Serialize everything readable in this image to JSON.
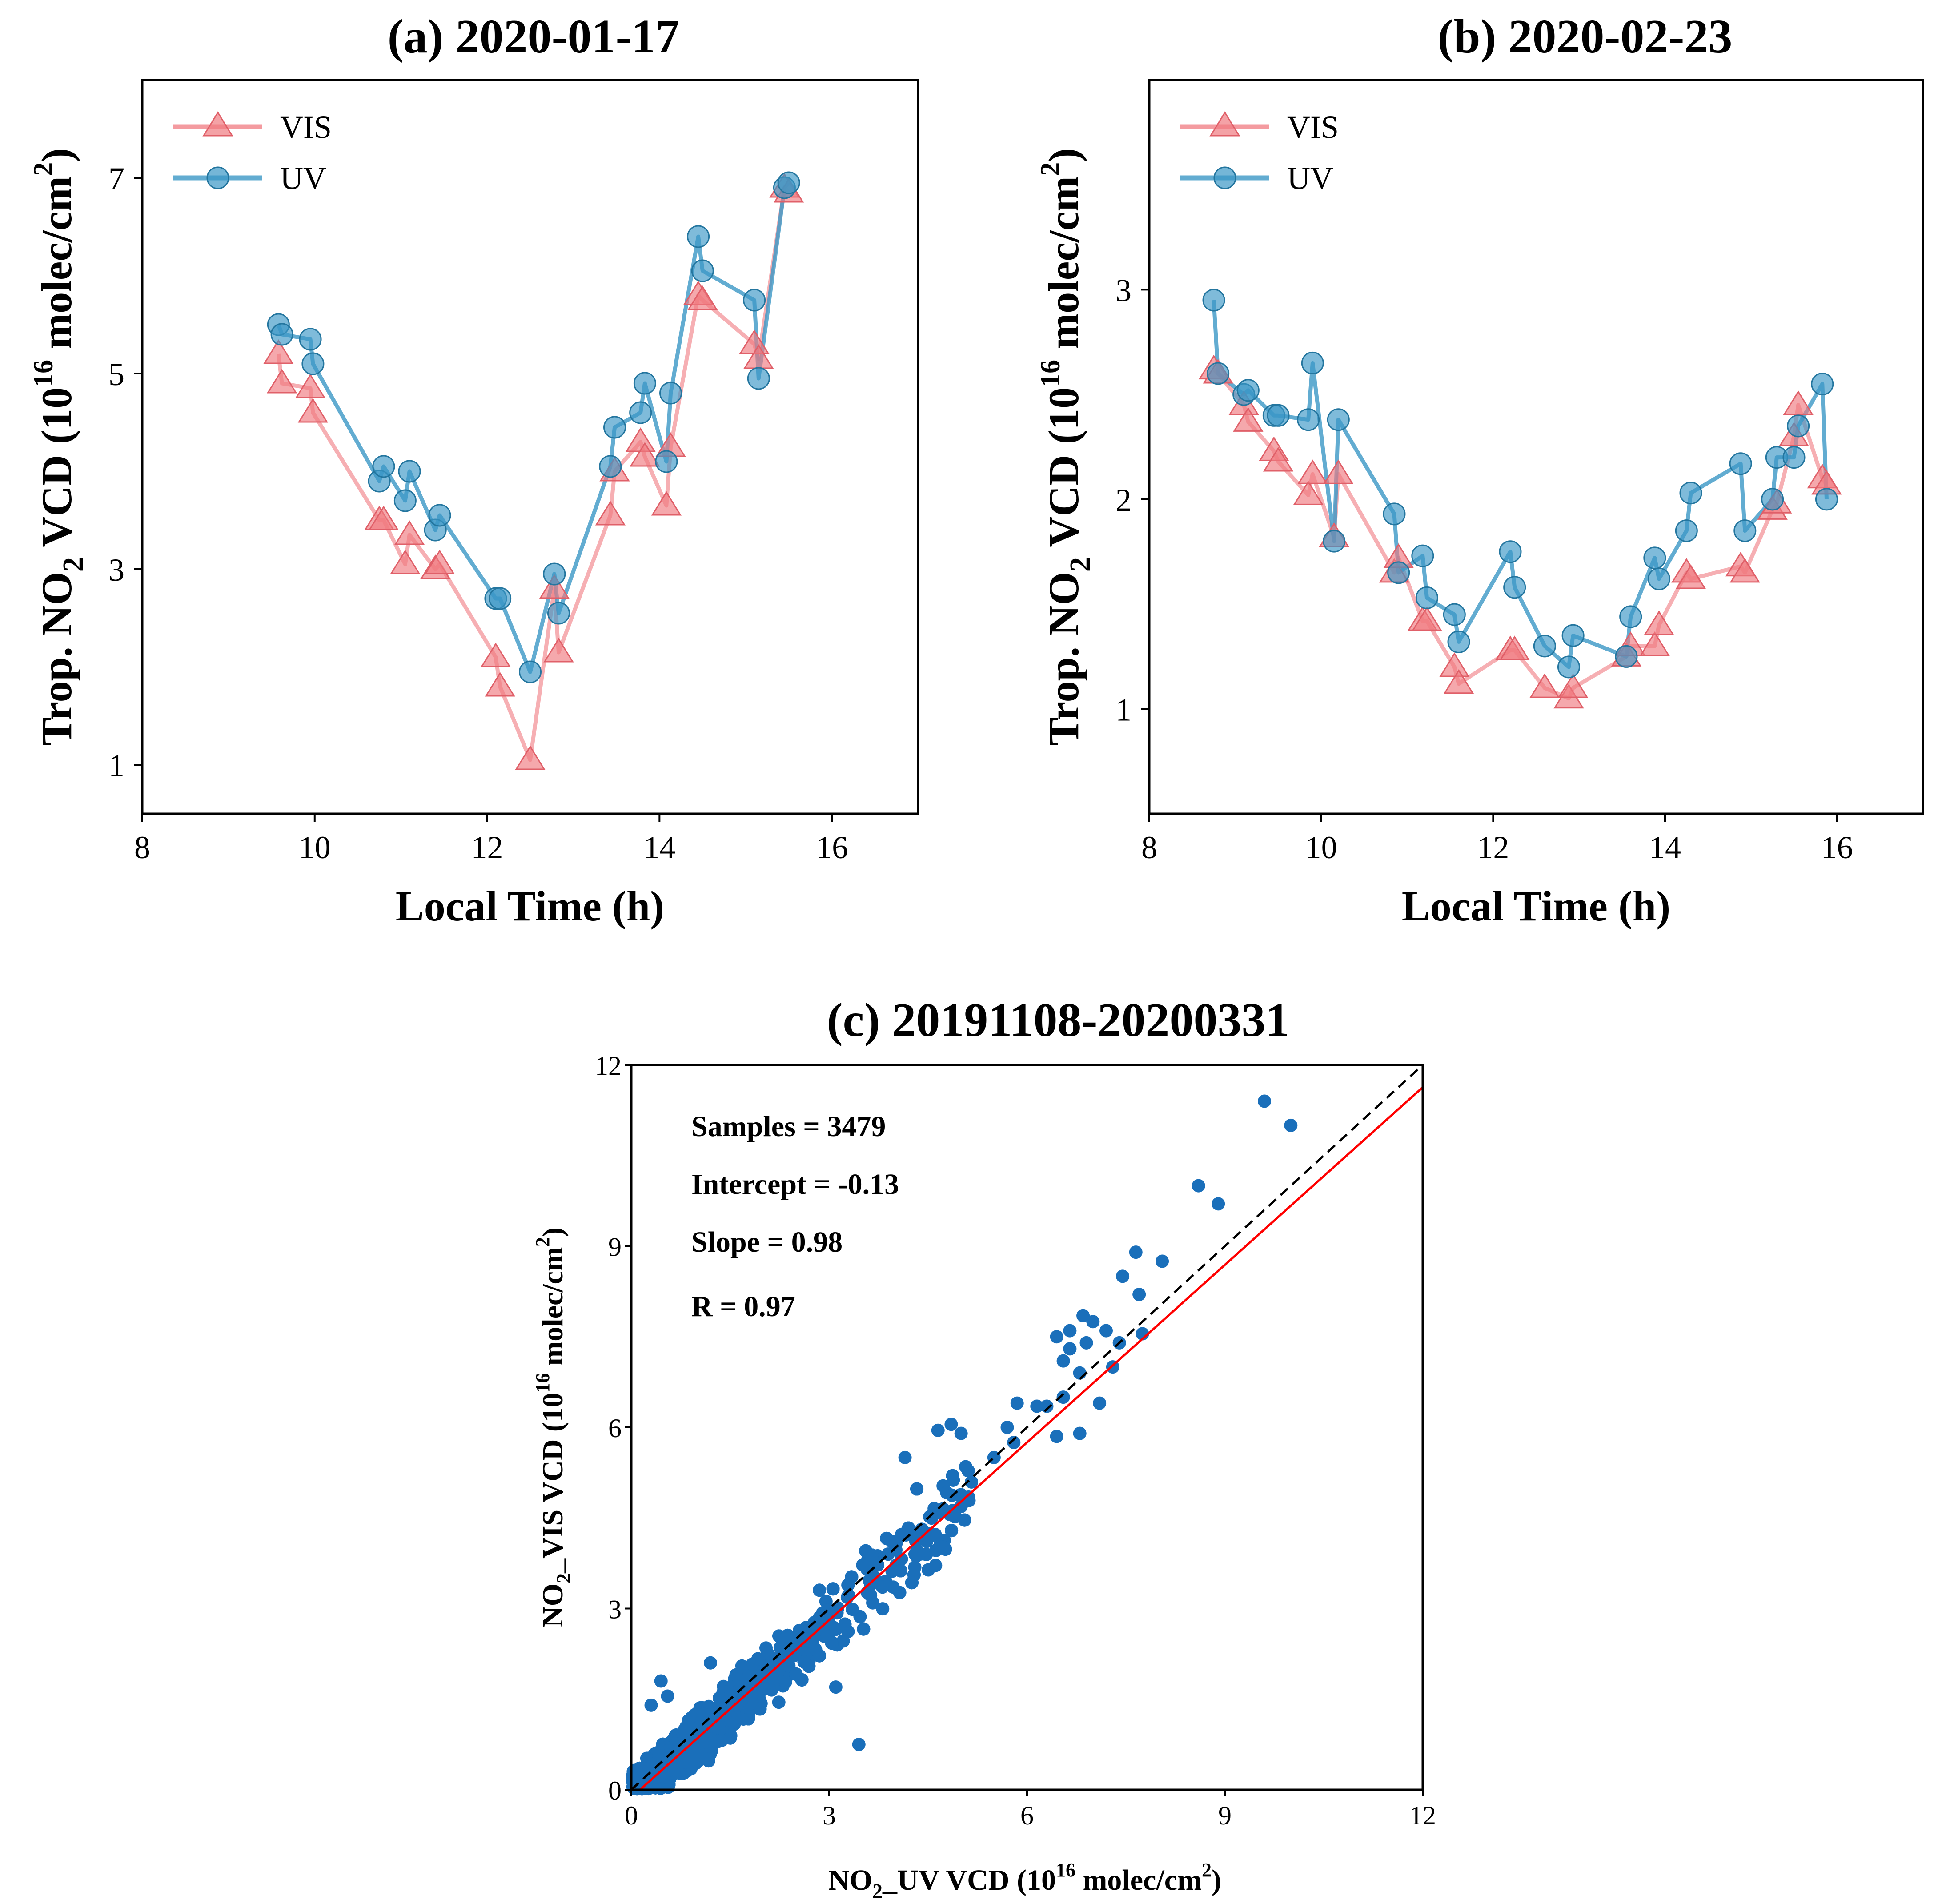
{
  "chart_data": [
    {
      "id": "a",
      "type": "line",
      "title": "(a)  2020-01-17",
      "xlabel": "Local Time (h)",
      "ylabel": "Trop. NO2 VCD (10^16 molec/cm^2)",
      "ylabel_parts": {
        "main": "Trop. NO",
        "sub": "2",
        "mid": " VCD (10",
        "sup1": "16",
        "tail": " molec/cm",
        "sup2": "2",
        "close": ")"
      },
      "xlim": [
        8,
        17
      ],
      "ylim": [
        0.5,
        8
      ],
      "xticks": [
        8,
        10,
        12,
        14,
        16
      ],
      "yticks": [
        1,
        3,
        5,
        7
      ],
      "legend": [
        "VIS",
        "UV"
      ],
      "series": [
        {
          "name": "VIS",
          "color": "#f07a80",
          "marker": "triangle",
          "x": [
            9.58,
            9.62,
            9.95,
            9.98,
            10.75,
            10.8,
            11.05,
            11.1,
            11.4,
            11.45,
            12.1,
            12.15,
            12.5,
            12.78,
            12.83,
            13.43,
            13.48,
            13.78,
            13.83,
            14.08,
            14.13,
            14.45,
            14.5,
            15.1,
            15.15,
            15.45,
            15.5
          ],
          "y": [
            5.2,
            4.9,
            4.85,
            4.6,
            3.5,
            3.5,
            3.05,
            3.35,
            3.0,
            3.05,
            2.1,
            1.8,
            1.05,
            2.8,
            2.15,
            3.55,
            4.0,
            4.3,
            4.15,
            3.65,
            4.25,
            5.8,
            5.75,
            5.3,
            5.15,
            6.9,
            6.85
          ]
        },
        {
          "name": "UV",
          "color": "#3b97c6",
          "marker": "circle",
          "x": [
            9.58,
            9.62,
            9.95,
            9.98,
            10.75,
            10.8,
            11.05,
            11.1,
            11.4,
            11.45,
            12.1,
            12.15,
            12.5,
            12.78,
            12.83,
            13.43,
            13.48,
            13.78,
            13.83,
            14.08,
            14.13,
            14.45,
            14.5,
            15.1,
            15.15,
            15.45,
            15.5
          ],
          "y": [
            5.5,
            5.4,
            5.35,
            5.1,
            3.9,
            4.05,
            3.7,
            4.0,
            3.4,
            3.55,
            2.7,
            2.7,
            1.95,
            2.95,
            2.55,
            4.05,
            4.45,
            4.6,
            4.9,
            4.1,
            4.8,
            6.4,
            6.05,
            5.75,
            4.95,
            6.9,
            6.95
          ]
        }
      ]
    },
    {
      "id": "b",
      "type": "line",
      "title": "(b)  2020-02-23",
      "xlabel": "Local Time (h)",
      "ylabel": "Trop. NO2 VCD (10^16 molec/cm^2)",
      "ylabel_parts": {
        "main": "Trop. NO",
        "sub": "2",
        "mid": " VCD (10",
        "sup1": "16",
        "tail": " molec/cm",
        "sup2": "2",
        "close": ")"
      },
      "xlim": [
        8,
        17
      ],
      "ylim": [
        0.5,
        4
      ],
      "xticks": [
        8,
        10,
        12,
        14,
        16
      ],
      "yticks": [
        1,
        2,
        3
      ],
      "legend": [
        "VIS",
        "UV"
      ],
      "series": [
        {
          "name": "VIS",
          "color": "#f07a80",
          "marker": "triangle",
          "x": [
            8.75,
            8.8,
            9.1,
            9.15,
            9.45,
            9.5,
            9.85,
            9.9,
            10.15,
            10.2,
            10.85,
            10.9,
            11.18,
            11.23,
            11.55,
            11.6,
            12.2,
            12.25,
            12.6,
            12.88,
            12.93,
            13.55,
            13.6,
            13.88,
            13.93,
            14.25,
            14.3,
            14.88,
            14.93,
            15.25,
            15.3,
            15.5,
            15.55,
            15.83,
            15.88
          ],
          "y": [
            2.62,
            2.6,
            2.45,
            2.37,
            2.23,
            2.18,
            2.02,
            2.12,
            1.82,
            2.12,
            1.65,
            1.72,
            1.42,
            1.42,
            1.2,
            1.12,
            1.28,
            1.28,
            1.1,
            1.05,
            1.1,
            1.25,
            1.3,
            1.3,
            1.4,
            1.65,
            1.62,
            1.68,
            1.65,
            1.95,
            1.98,
            2.3,
            2.45,
            2.1,
            2.07
          ]
        },
        {
          "name": "UV",
          "color": "#3b97c6",
          "marker": "circle",
          "x": [
            8.75,
            8.8,
            9.1,
            9.15,
            9.45,
            9.5,
            9.85,
            9.9,
            10.15,
            10.2,
            10.85,
            10.9,
            11.18,
            11.23,
            11.55,
            11.6,
            12.2,
            12.25,
            12.6,
            12.88,
            12.93,
            13.55,
            13.6,
            13.88,
            13.93,
            14.25,
            14.3,
            14.88,
            14.93,
            15.25,
            15.3,
            15.5,
            15.55,
            15.83,
            15.88
          ],
          "y": [
            2.95,
            2.6,
            2.5,
            2.52,
            2.4,
            2.4,
            2.38,
            2.65,
            1.8,
            2.38,
            1.93,
            1.65,
            1.73,
            1.53,
            1.45,
            1.32,
            1.75,
            1.58,
            1.3,
            1.2,
            1.35,
            1.25,
            1.44,
            1.72,
            1.62,
            1.85,
            2.03,
            2.17,
            1.85,
            2.0,
            2.2,
            2.2,
            2.35,
            2.55,
            2.0
          ]
        }
      ]
    },
    {
      "id": "c",
      "type": "scatter",
      "title": "(c) 20191108-20200331",
      "xlabel": "NO2_UV VCD (10^16 molec/cm^2)",
      "ylabel": "NO2_VIS VCD (10^16 molec/cm^2)",
      "xlabel_parts": {
        "main": "NO",
        "sub": "2",
        "mid": "_UV VCD (10",
        "sup1": "16",
        "tail": " molec/cm",
        "sup2": "2",
        "close": ")"
      },
      "ylabel_parts": {
        "main": "NO",
        "sub": "2",
        "mid": "_VIS VCD (10",
        "sup1": "16",
        "tail": " molec/cm",
        "sup2": "2",
        "close": ")"
      },
      "xlim": [
        0,
        12
      ],
      "ylim": [
        0,
        12
      ],
      "xticks": [
        0,
        3,
        6,
        9,
        12
      ],
      "yticks": [
        0,
        3,
        6,
        9,
        12
      ],
      "color": "#1a6fba",
      "fit": {
        "intercept": -0.13,
        "slope": 0.98,
        "color": "#ff0000"
      },
      "one_to_one_color": "#000000",
      "annotations": [
        "Samples = 3479",
        "Intercept = -0.13",
        "Slope = 0.98",
        "R = 0.97"
      ],
      "samples": 3479,
      "outliers": [
        [
          9.6,
          11.4
        ],
        [
          10.0,
          11.0
        ],
        [
          8.6,
          10.0
        ],
        [
          8.9,
          9.7
        ],
        [
          7.65,
          8.9
        ],
        [
          8.05,
          8.75
        ],
        [
          7.45,
          8.5
        ],
        [
          7.7,
          8.2
        ],
        [
          7.2,
          7.6
        ],
        [
          7.75,
          7.55
        ],
        [
          7.4,
          7.4
        ],
        [
          6.85,
          7.85
        ],
        [
          7.0,
          7.75
        ],
        [
          6.9,
          7.4
        ],
        [
          6.65,
          7.6
        ],
        [
          6.45,
          7.5
        ],
        [
          6.65,
          7.3
        ],
        [
          6.55,
          7.1
        ],
        [
          6.8,
          6.9
        ],
        [
          7.3,
          7.0
        ],
        [
          6.55,
          6.5
        ],
        [
          7.1,
          6.4
        ],
        [
          6.3,
          6.35
        ],
        [
          6.15,
          6.35
        ],
        [
          5.85,
          6.4
        ],
        [
          6.8,
          5.9
        ],
        [
          6.45,
          5.85
        ],
        [
          5.8,
          5.75
        ],
        [
          5.7,
          6.0
        ],
        [
          5.5,
          5.5
        ],
        [
          5.0,
          5.9
        ],
        [
          4.65,
          5.95
        ],
        [
          4.85,
          6.05
        ],
        [
          4.15,
          5.5
        ],
        [
          3.45,
          0.75
        ],
        [
          3.1,
          1.7
        ],
        [
          0.3,
          1.4
        ],
        [
          0.45,
          1.8
        ],
        [
          1.2,
          2.1
        ],
        [
          0.55,
          1.55
        ]
      ]
    }
  ]
}
